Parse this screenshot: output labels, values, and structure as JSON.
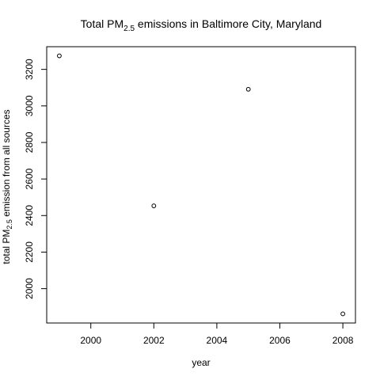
{
  "chart_data": {
    "type": "scatter",
    "title": {
      "prefix": "Total PM",
      "subscript": "2.5",
      "suffix": " emissions in Baltimore City, Maryland"
    },
    "xlabel": "year",
    "ylabel": {
      "prefix": "total PM",
      "subscript": "2.5",
      "suffix": " emission from all sources"
    },
    "x": [
      1999,
      2002,
      2005,
      2008
    ],
    "y": [
      3274,
      2453,
      3091,
      1862
    ],
    "xlim": [
      1998.6,
      2008.4
    ],
    "ylim": [
      1812,
      3324
    ],
    "x_ticks": [
      2000,
      2002,
      2004,
      2006,
      2008
    ],
    "y_ticks": [
      2000,
      2200,
      2400,
      2600,
      2800,
      3000,
      3200
    ],
    "grid": false,
    "legend": "none",
    "point_marker": "open-circle"
  }
}
